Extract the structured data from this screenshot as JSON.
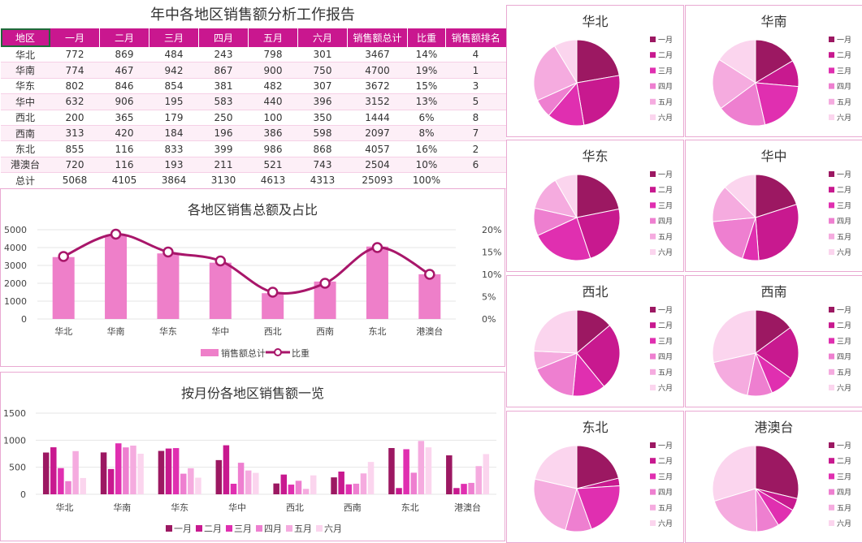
{
  "title": "年中各地区销售额分析工作报告",
  "table": {
    "headers": [
      "地区",
      "一月",
      "二月",
      "三月",
      "四月",
      "五月",
      "六月",
      "销售额总计",
      "比重",
      "销售额排名"
    ],
    "rows": [
      [
        "华北",
        "772",
        "869",
        "484",
        "243",
        "798",
        "301",
        "3467",
        "14%",
        "4"
      ],
      [
        "华南",
        "774",
        "467",
        "942",
        "867",
        "900",
        "750",
        "4700",
        "19%",
        "1"
      ],
      [
        "华东",
        "802",
        "846",
        "854",
        "381",
        "482",
        "307",
        "3672",
        "15%",
        "3"
      ],
      [
        "华中",
        "632",
        "906",
        "195",
        "583",
        "440",
        "396",
        "3152",
        "13%",
        "5"
      ],
      [
        "西北",
        "200",
        "365",
        "179",
        "250",
        "100",
        "350",
        "1444",
        "6%",
        "8"
      ],
      [
        "西南",
        "313",
        "420",
        "184",
        "196",
        "386",
        "598",
        "2097",
        "8%",
        "7"
      ],
      [
        "东北",
        "855",
        "116",
        "833",
        "399",
        "986",
        "868",
        "4057",
        "16%",
        "2"
      ],
      [
        "港澳台",
        "720",
        "116",
        "193",
        "211",
        "521",
        "743",
        "2504",
        "10%",
        "6"
      ],
      [
        "总计",
        "5068",
        "4105",
        "3864",
        "3130",
        "4613",
        "4313",
        "25093",
        "100%",
        ""
      ]
    ]
  },
  "colors": {
    "header_bg": "#c9178f",
    "bar": "#ee7fc9",
    "line": "#a8166a",
    "months": [
      "#9c1862",
      "#c8198f",
      "#e02fb0",
      "#ee7fd0",
      "#f5abdf",
      "#fbd5ee"
    ]
  },
  "chart_data": [
    {
      "type": "bar",
      "title": "各地区销售总额及占比",
      "categories": [
        "华北",
        "华南",
        "华东",
        "华中",
        "西北",
        "西南",
        "东北",
        "港澳台"
      ],
      "series": [
        {
          "name": "销售额总计",
          "type": "bar",
          "axis": "left",
          "values": [
            3467,
            4700,
            3672,
            3152,
            1444,
            2097,
            4057,
            2504
          ]
        },
        {
          "name": "比重",
          "type": "line",
          "axis": "right",
          "values": [
            0.14,
            0.19,
            0.15,
            0.13,
            0.06,
            0.08,
            0.16,
            0.1
          ]
        }
      ],
      "y_left": {
        "ylim": [
          0,
          5000
        ],
        "ticks": [
          "0",
          "1000",
          "2000",
          "3000",
          "4000",
          "5000"
        ]
      },
      "y_right": {
        "ylim": [
          0,
          0.2
        ],
        "ticks": [
          "0%",
          "5%",
          "10%",
          "15%",
          "20%"
        ]
      },
      "legend": "bottom"
    },
    {
      "type": "bar",
      "title": "按月份各地区销售额一览",
      "categories": [
        "华北",
        "华南",
        "华东",
        "华中",
        "西北",
        "西南",
        "东北",
        "港澳台"
      ],
      "series": [
        {
          "name": "一月",
          "values": [
            772,
            774,
            802,
            632,
            200,
            313,
            855,
            720
          ]
        },
        {
          "name": "二月",
          "values": [
            869,
            467,
            846,
            906,
            365,
            420,
            116,
            116
          ]
        },
        {
          "name": "三月",
          "values": [
            484,
            942,
            854,
            195,
            179,
            184,
            833,
            193
          ]
        },
        {
          "name": "四月",
          "values": [
            243,
            867,
            381,
            583,
            250,
            196,
            399,
            211
          ]
        },
        {
          "name": "五月",
          "values": [
            798,
            900,
            482,
            440,
            100,
            386,
            986,
            521
          ]
        },
        {
          "name": "六月",
          "values": [
            301,
            750,
            307,
            396,
            350,
            598,
            868,
            743
          ]
        }
      ],
      "ylim": [
        0,
        1500
      ],
      "ticks": [
        "0",
        "500",
        "1000",
        "1500"
      ],
      "legend": "bottom"
    },
    {
      "type": "pie",
      "legend_labels": [
        "一月",
        "二月",
        "三月",
        "四月",
        "五月",
        "六月"
      ],
      "pies": [
        {
          "title": "华北",
          "values": [
            772,
            869,
            484,
            243,
            798,
            301
          ]
        },
        {
          "title": "华南",
          "values": [
            774,
            467,
            942,
            867,
            900,
            750
          ]
        },
        {
          "title": "华东",
          "values": [
            802,
            846,
            854,
            381,
            482,
            307
          ]
        },
        {
          "title": "华中",
          "values": [
            632,
            906,
            195,
            583,
            440,
            396
          ]
        },
        {
          "title": "西北",
          "values": [
            200,
            365,
            179,
            250,
            100,
            350
          ]
        },
        {
          "title": "西南",
          "values": [
            313,
            420,
            184,
            196,
            386,
            598
          ]
        },
        {
          "title": "东北",
          "values": [
            855,
            116,
            833,
            399,
            986,
            868
          ]
        },
        {
          "title": "港澳台",
          "values": [
            720,
            116,
            193,
            211,
            521,
            743
          ]
        }
      ]
    }
  ]
}
